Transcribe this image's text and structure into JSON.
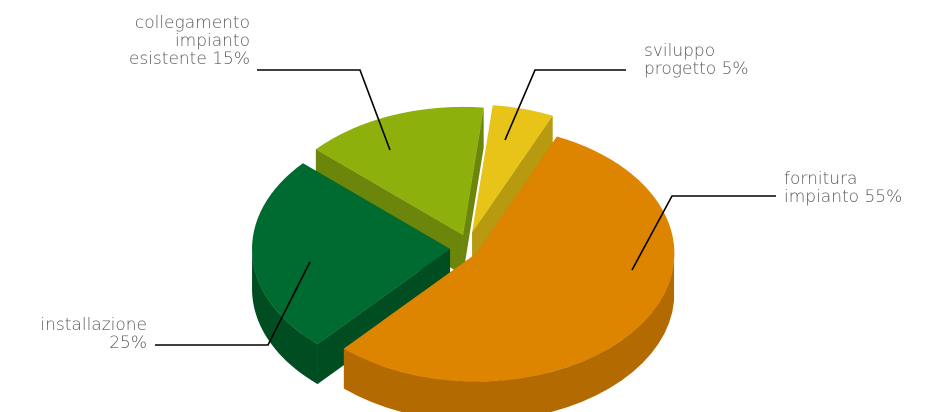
{
  "chart_data": {
    "type": "pie",
    "title": "",
    "slices": [
      {
        "key": "fornitura",
        "label_lines": [
          "fornitura",
          "impianto 55%"
        ],
        "value": 55,
        "color": "#dd8500",
        "side_color": "#b36a00"
      },
      {
        "key": "installazione",
        "label_lines": [
          "installazione",
          "25%"
        ],
        "value": 25,
        "color": "#006b30",
        "side_color": "#004d22"
      },
      {
        "key": "collegamento",
        "label_lines": [
          "collegamento",
          "impianto",
          "esistente 15%"
        ],
        "value": 15,
        "color": "#8db00c",
        "side_color": "#6b860a"
      },
      {
        "key": "sviluppo",
        "label_lines": [
          "sviluppo",
          "progetto 5%"
        ],
        "value": 5,
        "color": "#e8c418",
        "side_color": "#b89a10"
      }
    ],
    "legend": "none",
    "style": "3d-exploded"
  }
}
